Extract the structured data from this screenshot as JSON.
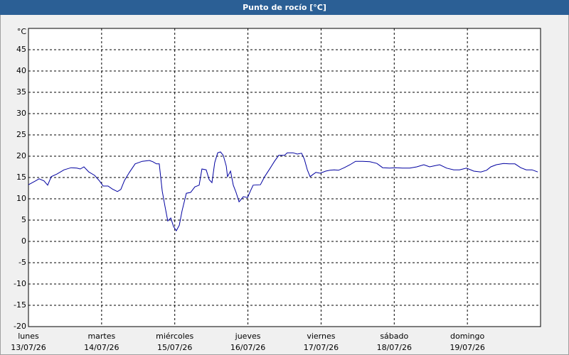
{
  "chart_data": {
    "type": "line",
    "title": "Punto de rocío [°C]",
    "y_unit": "°C",
    "xlim": [
      0,
      168
    ],
    "xticks": [
      {
        "value": 0,
        "label": "lunes"
      },
      {
        "value": 24,
        "label": "martes"
      },
      {
        "value": 48,
        "label": "miércoles"
      },
      {
        "value": 72,
        "label": "jueves"
      },
      {
        "value": 96,
        "label": "viernes"
      },
      {
        "value": 120,
        "label": "sábado"
      },
      {
        "value": 144,
        "label": "domingo"
      }
    ],
    "xtick_dates": [
      "13/07/26",
      "14/07/26",
      "15/07/26",
      "16/07/26",
      "17/07/26",
      "18/07/26",
      "19/07/26"
    ],
    "ylim": [
      -20,
      50
    ],
    "yticks": [
      -20,
      -15,
      -10,
      -5,
      0,
      5,
      10,
      15,
      20,
      25,
      30,
      35,
      40,
      45
    ],
    "grid": true,
    "series": [
      {
        "name": "Punto de rocío",
        "color": "#0000a0",
        "x": [
          0,
          2.3,
          3.5,
          5.1,
          6.3,
          7.5,
          9.3,
          11.7,
          14,
          15.9,
          17,
          18.2,
          19.8,
          21.7,
          23.3,
          24.5,
          26.1,
          27.5,
          29.2,
          30.3,
          31.5,
          33.1,
          35,
          37.3,
          39.7,
          40.8,
          42,
          42.9,
          43.9,
          44.8,
          45.7,
          46.7,
          47.6,
          48.5,
          49.5,
          50.4,
          51.8,
          53.2,
          54.6,
          56,
          56.9,
          58.3,
          59.3,
          60.2,
          61.1,
          62.1,
          63,
          63.9,
          64.9,
          65.3,
          66.3,
          67.2,
          68.1,
          69.1,
          70.5,
          71.9,
          72.8,
          73.7,
          76.1,
          77.5,
          79.3,
          80.7,
          82.1,
          84,
          84.9,
          86.8,
          88.2,
          89.6,
          90.5,
          91.5,
          92.4,
          93.3,
          94.3,
          95.7,
          97.5,
          98.9,
          100.3,
          101.7,
          103.6,
          105.5,
          107.3,
          109.7,
          112,
          114.3,
          116.2,
          118.5,
          120.4,
          122.7,
          125.1,
          127.4,
          129.7,
          131.6,
          133.5,
          134.9,
          137.2,
          139.5,
          141.4,
          143.7,
          146.1,
          148.4,
          150.3,
          151.7,
          153.5,
          155.9,
          157.7,
          159.6,
          161.5,
          163.3,
          165.2,
          167.1
        ],
        "values": [
          13.3,
          14.2,
          14.7,
          14.2,
          13.2,
          15.2,
          15.8,
          16.8,
          17.3,
          17.2,
          17,
          17.5,
          16.3,
          15.5,
          14.2,
          13,
          13,
          12.3,
          11.7,
          12.2,
          14.3,
          16.2,
          18.2,
          18.8,
          19,
          18.7,
          18.2,
          18.2,
          11.8,
          8.2,
          4.8,
          5.5,
          3.5,
          2.5,
          3.8,
          7.2,
          11.3,
          11.5,
          12.8,
          13.2,
          17,
          16.8,
          14.5,
          13.8,
          18.5,
          20.8,
          21,
          20.2,
          17.7,
          15.2,
          16.5,
          13.2,
          11.5,
          9.3,
          10.5,
          10.3,
          11.8,
          13.2,
          13.3,
          15.2,
          17.2,
          18.8,
          20.2,
          20.2,
          20.8,
          20.8,
          20.5,
          20.7,
          19.3,
          16.8,
          15.2,
          15.7,
          16.2,
          16,
          16.5,
          16.7,
          16.8,
          16.7,
          17.3,
          18,
          18.8,
          18.8,
          18.7,
          18.3,
          17.3,
          17.2,
          17.3,
          17.2,
          17.2,
          17.5,
          18,
          17.5,
          17.8,
          18,
          17.2,
          16.8,
          16.8,
          17.2,
          16.5,
          16.3,
          16.7,
          17.5,
          18,
          18.3,
          18.2,
          18.2,
          17.3,
          16.8,
          16.8,
          16.3
        ]
      }
    ]
  }
}
